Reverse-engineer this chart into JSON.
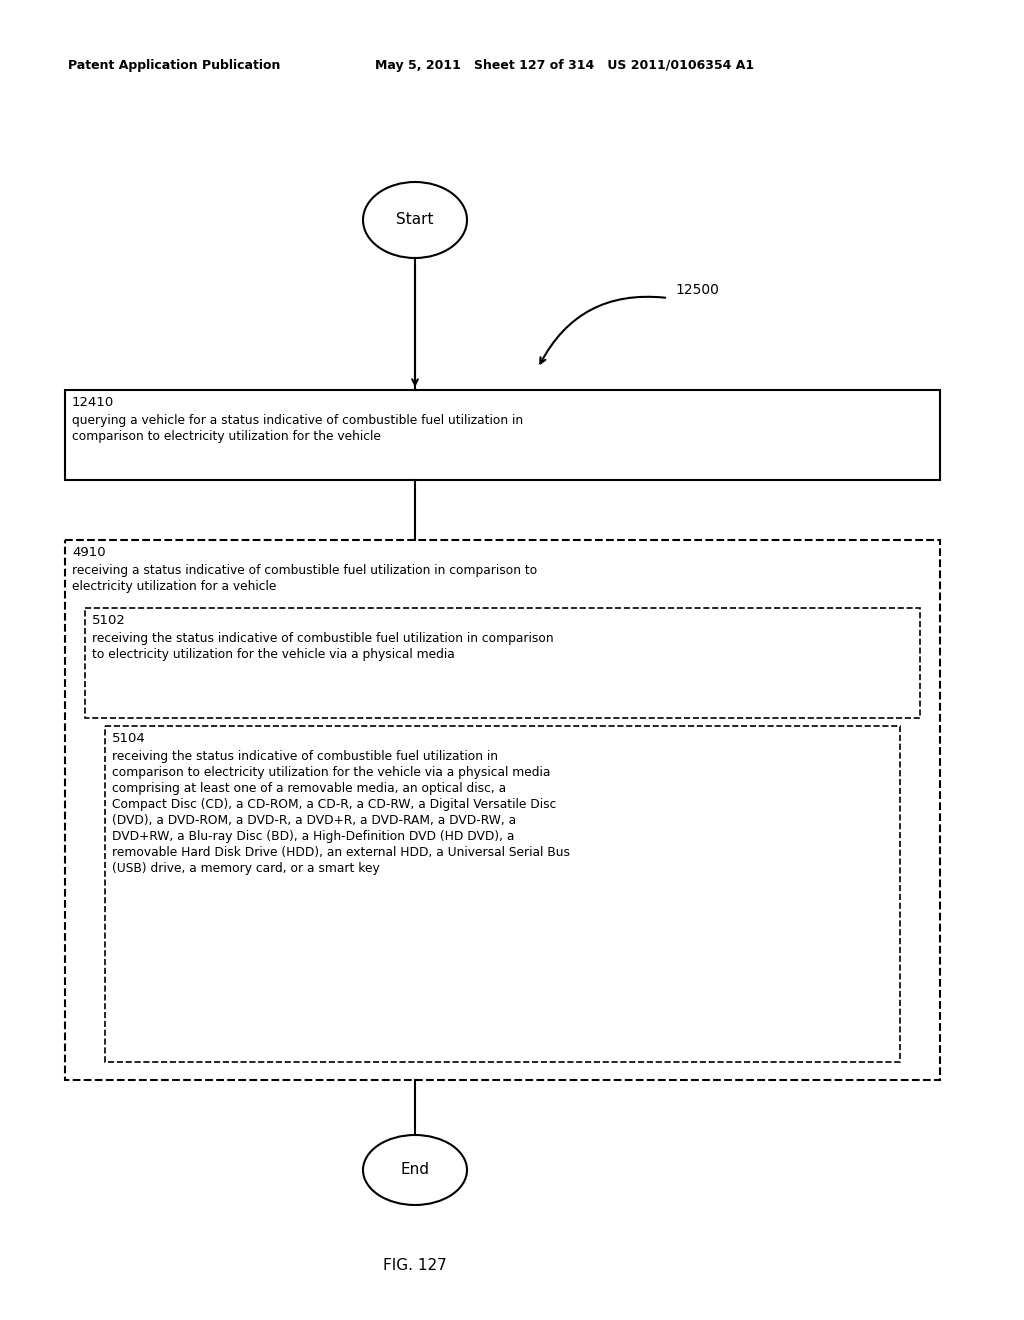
{
  "header_left": "Patent Application Publication",
  "header_mid": "May 5, 2011   Sheet 127 of 314   US 2011/0106354 A1",
  "fig_label": "FIG. 127",
  "diagram_label": "12500",
  "start_label": "Start",
  "end_label": "End",
  "box1_id": "12410",
  "box1_line1": "querying a vehicle for a status indicative of combustible fuel utilization in",
  "box1_line2": "comparison to electricity utilization for the vehicle",
  "box2_id": "4910",
  "box2_line1": "receiving a status indicative of combustible fuel utilization in comparison to",
  "box2_line2": "electricity utilization for a vehicle",
  "box3_id": "5102",
  "box3_line1": "receiving the status indicative of combustible fuel utilization in comparison",
  "box3_line2": "to electricity utilization for the vehicle via a physical media",
  "box4_id": "5104",
  "box4_line1": "receiving the status indicative of combustible fuel utilization in",
  "box4_line2": "comparison to electricity utilization for the vehicle via a physical media",
  "box4_line3": "comprising at least one of a removable media, an optical disc, a",
  "box4_line4": "Compact Disc (CD), a CD-ROM, a CD-R, a CD-RW, a Digital Versatile Disc",
  "box4_line5": "(DVD), a DVD-ROM, a DVD-R, a DVD+R, a DVD-RAM, a DVD-RW, a",
  "box4_line6": "DVD+RW, a Blu-ray Disc (BD), a High-Definition DVD (HD DVD), a",
  "box4_line7": "removable Hard Disk Drive (HDD), an external HDD, a Universal Serial Bus",
  "box4_line8": "(USB) drive, a memory card, or a smart key",
  "bg_color": "#ffffff",
  "text_color": "#000000"
}
